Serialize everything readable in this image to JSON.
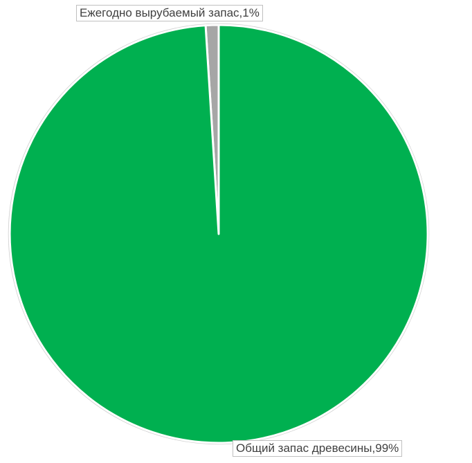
{
  "chart_data": {
    "type": "pie",
    "title": "",
    "slices": [
      {
        "label": "Ежегодно вырубаемый запас",
        "percent_label": "1%",
        "value": 1,
        "color": "#a6a6a6"
      },
      {
        "label": "Общий запас древесины",
        "percent_label": "99%",
        "value": 99,
        "color": "#00b050"
      }
    ],
    "data_labels": [
      "Ежегодно вырубаемый запас,1%",
      "Общий запас древесины,99%"
    ],
    "start_angle_deg": 0,
    "direction": "clockwise",
    "legend": "none"
  }
}
